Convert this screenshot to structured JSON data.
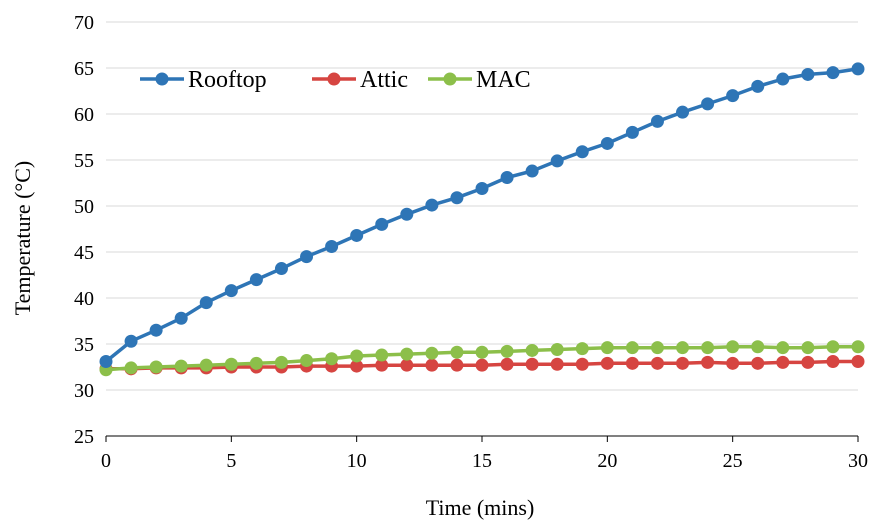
{
  "chart_data": {
    "type": "line",
    "xlabel": "Time (mins)",
    "ylabel": "Temperature (°C)",
    "xlim": [
      0,
      30
    ],
    "ylim": [
      25,
      70
    ],
    "x_ticks": [
      0,
      5,
      10,
      15,
      20,
      25,
      30
    ],
    "y_ticks": [
      25,
      30,
      35,
      40,
      45,
      50,
      55,
      60,
      65,
      70
    ],
    "grid": "horizontal",
    "legend_position": "top-left",
    "x": [
      0,
      1,
      2,
      3,
      4,
      5,
      6,
      7,
      8,
      9,
      10,
      11,
      12,
      13,
      14,
      15,
      16,
      17,
      18,
      19,
      20,
      21,
      22,
      23,
      24,
      25,
      26,
      27,
      28,
      29,
      30
    ],
    "series": [
      {
        "name": "Rooftop",
        "color": "#2e75b6",
        "values": [
          33.1,
          35.3,
          36.5,
          37.8,
          39.5,
          40.8,
          42.0,
          43.2,
          44.5,
          45.6,
          46.8,
          48.0,
          49.1,
          50.1,
          50.9,
          51.9,
          53.1,
          53.8,
          54.9,
          55.9,
          56.8,
          58.0,
          59.2,
          60.2,
          61.1,
          62.0,
          63.0,
          63.8,
          64.3,
          64.5,
          64.9
        ]
      },
      {
        "name": "Attic",
        "color": "#d64541",
        "values": [
          32.3,
          32.3,
          32.4,
          32.4,
          32.4,
          32.5,
          32.5,
          32.5,
          32.6,
          32.6,
          32.6,
          32.7,
          32.7,
          32.7,
          32.7,
          32.7,
          32.8,
          32.8,
          32.8,
          32.8,
          32.9,
          32.9,
          32.9,
          32.9,
          33.0,
          32.9,
          32.9,
          33.0,
          33.0,
          33.1,
          33.1
        ]
      },
      {
        "name": "MAC",
        "color": "#8cbf4a",
        "values": [
          32.2,
          32.4,
          32.5,
          32.6,
          32.7,
          32.8,
          32.9,
          33.0,
          33.2,
          33.4,
          33.7,
          33.8,
          33.9,
          34.0,
          34.1,
          34.1,
          34.2,
          34.3,
          34.4,
          34.5,
          34.6,
          34.6,
          34.6,
          34.6,
          34.6,
          34.7,
          34.7,
          34.6,
          34.6,
          34.7,
          34.7
        ]
      }
    ]
  }
}
